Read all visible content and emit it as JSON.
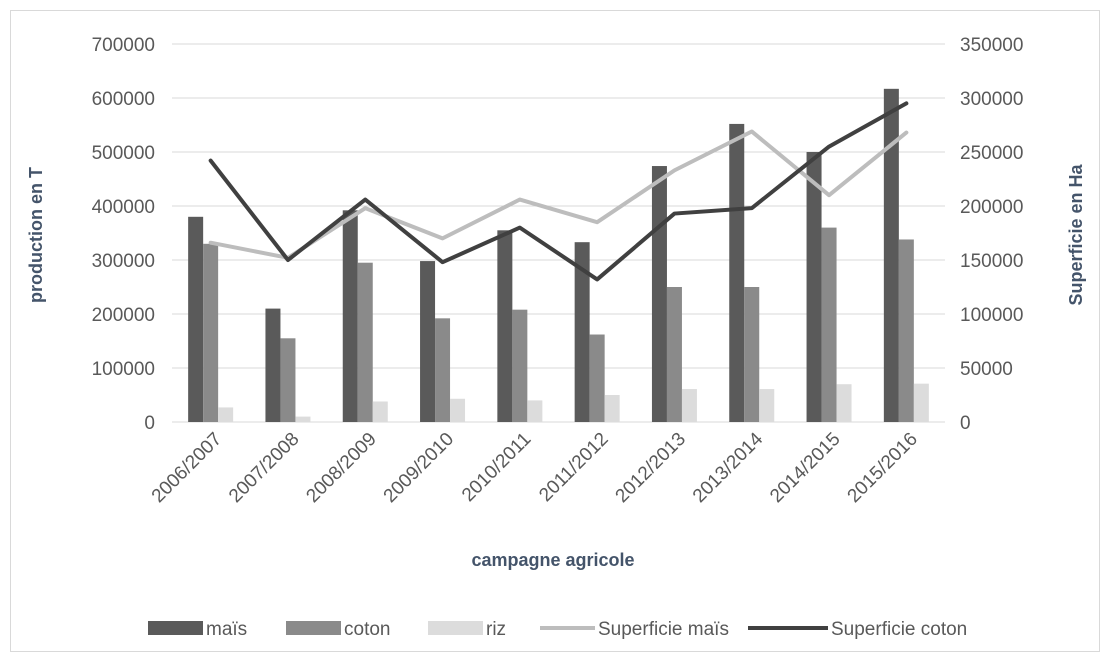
{
  "chart_data": {
    "type": "bar",
    "categories": [
      "2006/2007",
      "2007/2008",
      "2008/2009",
      "2009/2010",
      "2010/2011",
      "2011/2012",
      "2012/2013",
      "2013/2014",
      "2014/2015",
      "2015/2016"
    ],
    "xlabel": "campagne agricole",
    "ylabel": "production en T",
    "y2label": "Superficie en Ha",
    "ylim": [
      0,
      700000
    ],
    "y2lim": [
      0,
      350000
    ],
    "yticks": [
      "0",
      "100000",
      "200000",
      "300000",
      "400000",
      "500000",
      "600000",
      "700000"
    ],
    "y2ticks": [
      "0",
      "50000",
      "100000",
      "150000",
      "200000",
      "250000",
      "300000",
      "350000"
    ],
    "grid": true,
    "legend_position": "bottom",
    "series": [
      {
        "name": "maïs",
        "kind": "bar",
        "axis": "left",
        "color": "#5a5a5a",
        "values": [
          380000,
          210000,
          392000,
          298000,
          355000,
          333000,
          474000,
          552000,
          500000,
          617000
        ]
      },
      {
        "name": "coton",
        "kind": "bar",
        "axis": "left",
        "color": "#8a8a8a",
        "values": [
          330000,
          155000,
          295000,
          192000,
          208000,
          162000,
          250000,
          250000,
          360000,
          338000
        ]
      },
      {
        "name": "riz",
        "kind": "bar",
        "axis": "left",
        "color": "#dcdcdc",
        "values": [
          27000,
          10000,
          38000,
          43000,
          40000,
          50000,
          61000,
          61000,
          70000,
          71000
        ]
      },
      {
        "name": "Superficie maïs",
        "kind": "line",
        "axis": "right",
        "color": "#bdbdbd",
        "values": [
          166000,
          152000,
          198000,
          170000,
          206000,
          185000,
          233000,
          269000,
          210000,
          268000
        ]
      },
      {
        "name": "Superficie coton",
        "kind": "line",
        "axis": "right",
        "color": "#404040",
        "values": [
          242000,
          150000,
          206000,
          148000,
          180000,
          132000,
          193000,
          198000,
          255000,
          295000
        ]
      }
    ]
  }
}
